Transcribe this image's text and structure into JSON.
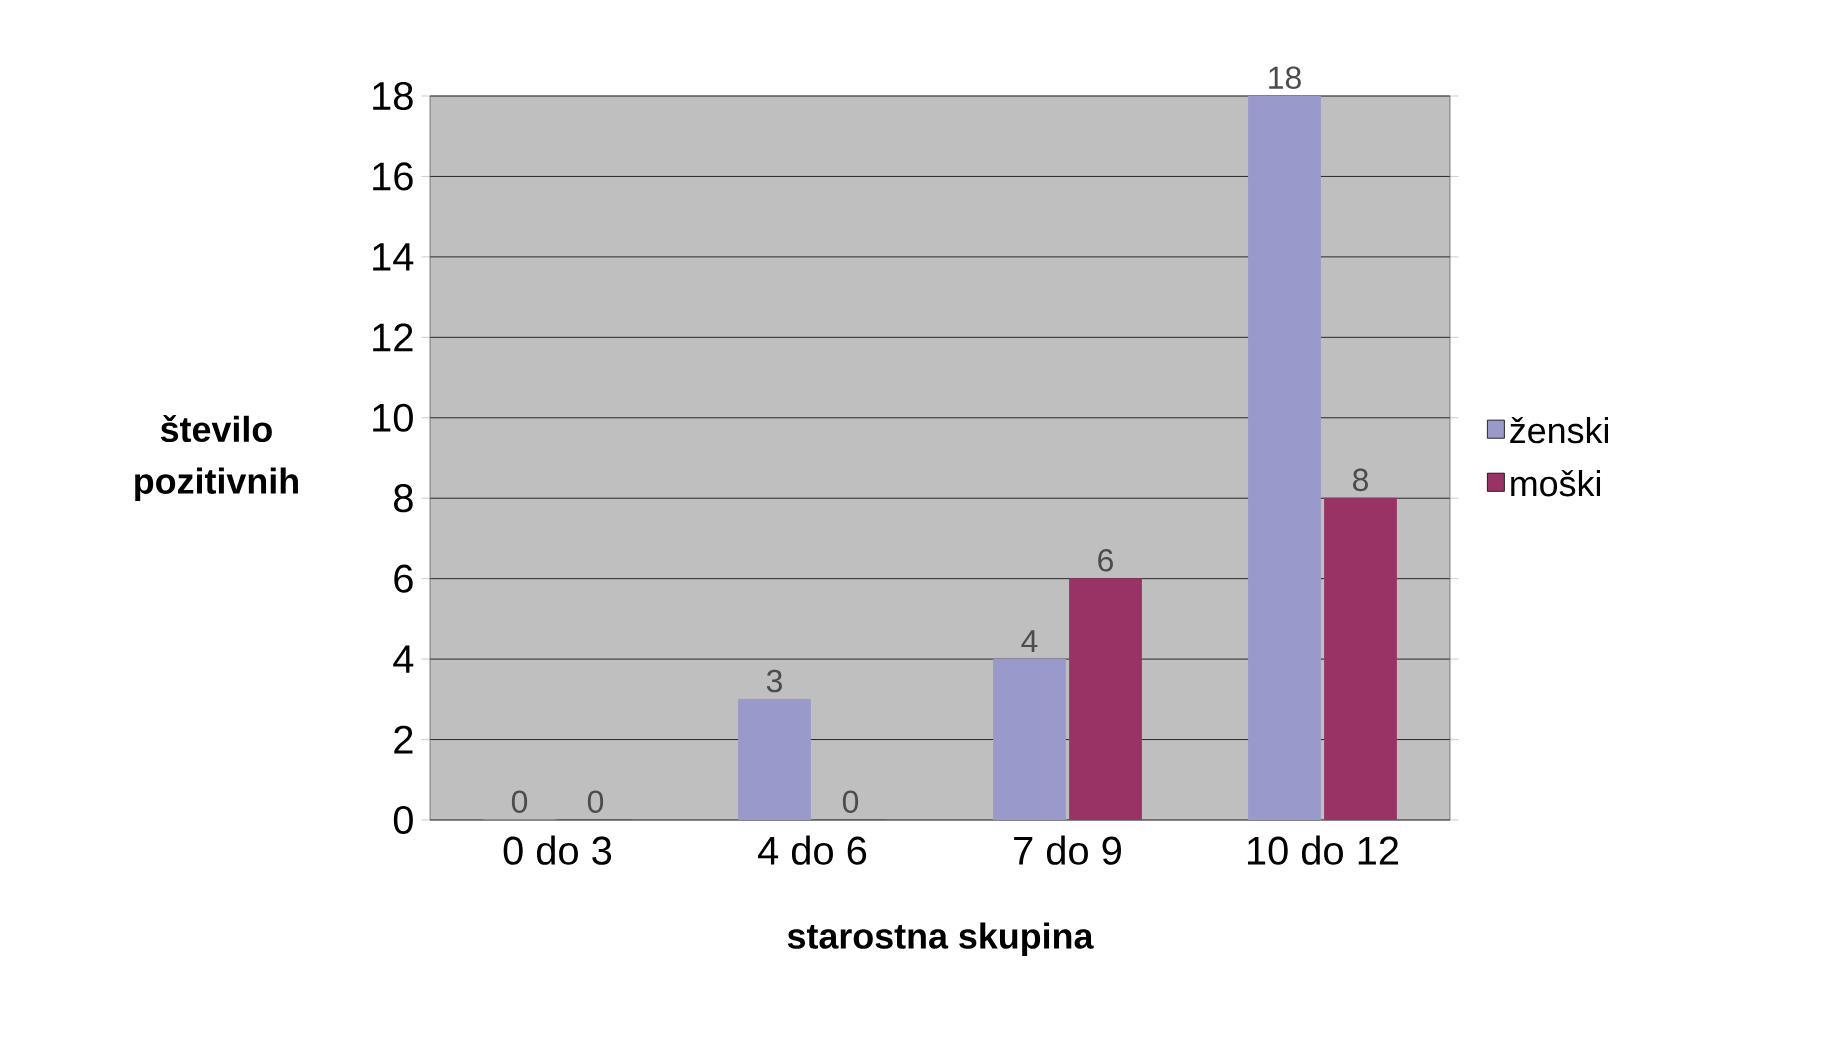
{
  "chart_data": {
    "type": "bar",
    "xlabel": "starostna skupina",
    "ylabel": "število pozitivnih",
    "categories": [
      "0 do 3",
      "4 do 6",
      "7 do 9",
      "10 do 12"
    ],
    "series": [
      {
        "name": "ženski",
        "color": "#9999cc",
        "values": [
          0,
          3,
          4,
          18
        ]
      },
      {
        "name": "moški",
        "color": "#993366",
        "values": [
          0,
          0,
          6,
          8
        ]
      }
    ],
    "ylim": [
      0,
      18
    ],
    "yticks": [
      0,
      2,
      4,
      6,
      8,
      10,
      12,
      14,
      16,
      18
    ],
    "grid": "y",
    "legend": "right",
    "data_labels": true
  }
}
